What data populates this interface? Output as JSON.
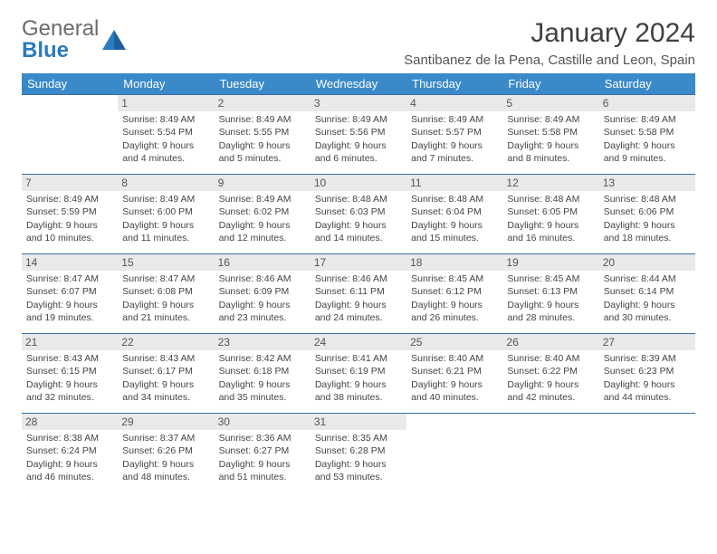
{
  "brand": {
    "part1": "General",
    "part2": "Blue"
  },
  "title": "January 2024",
  "subtitle": "Santibanez de la Pena, Castille and Leon, Spain",
  "colors": {
    "header_bg": "#3a89c9",
    "header_fg": "#ffffff",
    "daynum_bg": "#e9e9e9",
    "border": "#3a6ea5",
    "brand_gray": "#6b6b6b",
    "brand_blue": "#2b7bbf"
  },
  "weekdays": [
    "Sunday",
    "Monday",
    "Tuesday",
    "Wednesday",
    "Thursday",
    "Friday",
    "Saturday"
  ],
  "weeks": [
    [
      null,
      {
        "n": "1",
        "sr": "Sunrise: 8:49 AM",
        "ss": "Sunset: 5:54 PM",
        "d1": "Daylight: 9 hours",
        "d2": "and 4 minutes."
      },
      {
        "n": "2",
        "sr": "Sunrise: 8:49 AM",
        "ss": "Sunset: 5:55 PM",
        "d1": "Daylight: 9 hours",
        "d2": "and 5 minutes."
      },
      {
        "n": "3",
        "sr": "Sunrise: 8:49 AM",
        "ss": "Sunset: 5:56 PM",
        "d1": "Daylight: 9 hours",
        "d2": "and 6 minutes."
      },
      {
        "n": "4",
        "sr": "Sunrise: 8:49 AM",
        "ss": "Sunset: 5:57 PM",
        "d1": "Daylight: 9 hours",
        "d2": "and 7 minutes."
      },
      {
        "n": "5",
        "sr": "Sunrise: 8:49 AM",
        "ss": "Sunset: 5:58 PM",
        "d1": "Daylight: 9 hours",
        "d2": "and 8 minutes."
      },
      {
        "n": "6",
        "sr": "Sunrise: 8:49 AM",
        "ss": "Sunset: 5:58 PM",
        "d1": "Daylight: 9 hours",
        "d2": "and 9 minutes."
      }
    ],
    [
      {
        "n": "7",
        "sr": "Sunrise: 8:49 AM",
        "ss": "Sunset: 5:59 PM",
        "d1": "Daylight: 9 hours",
        "d2": "and 10 minutes."
      },
      {
        "n": "8",
        "sr": "Sunrise: 8:49 AM",
        "ss": "Sunset: 6:00 PM",
        "d1": "Daylight: 9 hours",
        "d2": "and 11 minutes."
      },
      {
        "n": "9",
        "sr": "Sunrise: 8:49 AM",
        "ss": "Sunset: 6:02 PM",
        "d1": "Daylight: 9 hours",
        "d2": "and 12 minutes."
      },
      {
        "n": "10",
        "sr": "Sunrise: 8:48 AM",
        "ss": "Sunset: 6:03 PM",
        "d1": "Daylight: 9 hours",
        "d2": "and 14 minutes."
      },
      {
        "n": "11",
        "sr": "Sunrise: 8:48 AM",
        "ss": "Sunset: 6:04 PM",
        "d1": "Daylight: 9 hours",
        "d2": "and 15 minutes."
      },
      {
        "n": "12",
        "sr": "Sunrise: 8:48 AM",
        "ss": "Sunset: 6:05 PM",
        "d1": "Daylight: 9 hours",
        "d2": "and 16 minutes."
      },
      {
        "n": "13",
        "sr": "Sunrise: 8:48 AM",
        "ss": "Sunset: 6:06 PM",
        "d1": "Daylight: 9 hours",
        "d2": "and 18 minutes."
      }
    ],
    [
      {
        "n": "14",
        "sr": "Sunrise: 8:47 AM",
        "ss": "Sunset: 6:07 PM",
        "d1": "Daylight: 9 hours",
        "d2": "and 19 minutes."
      },
      {
        "n": "15",
        "sr": "Sunrise: 8:47 AM",
        "ss": "Sunset: 6:08 PM",
        "d1": "Daylight: 9 hours",
        "d2": "and 21 minutes."
      },
      {
        "n": "16",
        "sr": "Sunrise: 8:46 AM",
        "ss": "Sunset: 6:09 PM",
        "d1": "Daylight: 9 hours",
        "d2": "and 23 minutes."
      },
      {
        "n": "17",
        "sr": "Sunrise: 8:46 AM",
        "ss": "Sunset: 6:11 PM",
        "d1": "Daylight: 9 hours",
        "d2": "and 24 minutes."
      },
      {
        "n": "18",
        "sr": "Sunrise: 8:45 AM",
        "ss": "Sunset: 6:12 PM",
        "d1": "Daylight: 9 hours",
        "d2": "and 26 minutes."
      },
      {
        "n": "19",
        "sr": "Sunrise: 8:45 AM",
        "ss": "Sunset: 6:13 PM",
        "d1": "Daylight: 9 hours",
        "d2": "and 28 minutes."
      },
      {
        "n": "20",
        "sr": "Sunrise: 8:44 AM",
        "ss": "Sunset: 6:14 PM",
        "d1": "Daylight: 9 hours",
        "d2": "and 30 minutes."
      }
    ],
    [
      {
        "n": "21",
        "sr": "Sunrise: 8:43 AM",
        "ss": "Sunset: 6:15 PM",
        "d1": "Daylight: 9 hours",
        "d2": "and 32 minutes."
      },
      {
        "n": "22",
        "sr": "Sunrise: 8:43 AM",
        "ss": "Sunset: 6:17 PM",
        "d1": "Daylight: 9 hours",
        "d2": "and 34 minutes."
      },
      {
        "n": "23",
        "sr": "Sunrise: 8:42 AM",
        "ss": "Sunset: 6:18 PM",
        "d1": "Daylight: 9 hours",
        "d2": "and 35 minutes."
      },
      {
        "n": "24",
        "sr": "Sunrise: 8:41 AM",
        "ss": "Sunset: 6:19 PM",
        "d1": "Daylight: 9 hours",
        "d2": "and 38 minutes."
      },
      {
        "n": "25",
        "sr": "Sunrise: 8:40 AM",
        "ss": "Sunset: 6:21 PM",
        "d1": "Daylight: 9 hours",
        "d2": "and 40 minutes."
      },
      {
        "n": "26",
        "sr": "Sunrise: 8:40 AM",
        "ss": "Sunset: 6:22 PM",
        "d1": "Daylight: 9 hours",
        "d2": "and 42 minutes."
      },
      {
        "n": "27",
        "sr": "Sunrise: 8:39 AM",
        "ss": "Sunset: 6:23 PM",
        "d1": "Daylight: 9 hours",
        "d2": "and 44 minutes."
      }
    ],
    [
      {
        "n": "28",
        "sr": "Sunrise: 8:38 AM",
        "ss": "Sunset: 6:24 PM",
        "d1": "Daylight: 9 hours",
        "d2": "and 46 minutes."
      },
      {
        "n": "29",
        "sr": "Sunrise: 8:37 AM",
        "ss": "Sunset: 6:26 PM",
        "d1": "Daylight: 9 hours",
        "d2": "and 48 minutes."
      },
      {
        "n": "30",
        "sr": "Sunrise: 8:36 AM",
        "ss": "Sunset: 6:27 PM",
        "d1": "Daylight: 9 hours",
        "d2": "and 51 minutes."
      },
      {
        "n": "31",
        "sr": "Sunrise: 8:35 AM",
        "ss": "Sunset: 6:28 PM",
        "d1": "Daylight: 9 hours",
        "d2": "and 53 minutes."
      },
      null,
      null,
      null
    ]
  ]
}
